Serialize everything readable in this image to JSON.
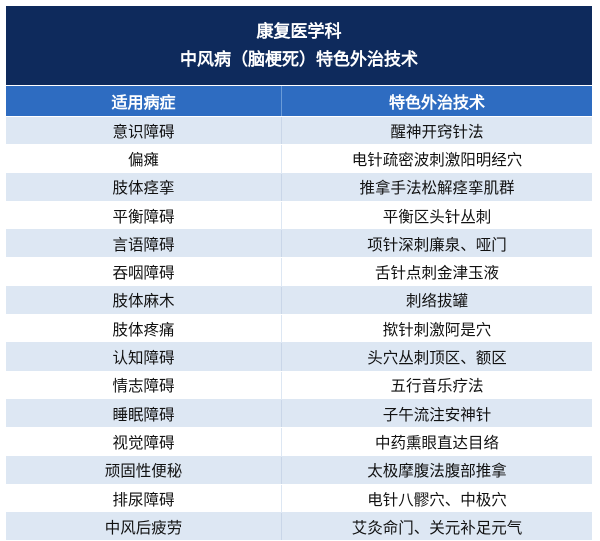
{
  "title": {
    "line1": "康复医学科",
    "line2": "中风病（脑梗死）特色外治技术"
  },
  "header": {
    "col1": "适用病症",
    "col2": "特色外治技术"
  },
  "rows": [
    {
      "condition": "意识障碍",
      "technique": "醒神开窍针法"
    },
    {
      "condition": "偏瘫",
      "technique": "电针疏密波刺激阳明经穴"
    },
    {
      "condition": "肢体痉挛",
      "technique": "推拿手法松解痉挛肌群"
    },
    {
      "condition": "平衡障碍",
      "technique": "平衡区头针丛刺"
    },
    {
      "condition": "言语障碍",
      "technique": "项针深刺廉泉、哑门"
    },
    {
      "condition": "吞咽障碍",
      "technique": "舌针点刺金津玉液"
    },
    {
      "condition": "肢体麻木",
      "technique": "刺络拔罐"
    },
    {
      "condition": "肢体疼痛",
      "technique": "揿针刺激阿是穴"
    },
    {
      "condition": "认知障碍",
      "technique": "头穴丛刺顶区、额区"
    },
    {
      "condition": "情志障碍",
      "technique": "五行音乐疗法"
    },
    {
      "condition": "睡眠障碍",
      "technique": "子午流注安神针"
    },
    {
      "condition": "视觉障碍",
      "technique": "中药熏眼直达目络"
    },
    {
      "condition": "顽固性便秘",
      "technique": "太极摩腹法腹部推拿"
    },
    {
      "condition": "排尿障碍",
      "technique": "电针八髎穴、中极穴"
    },
    {
      "condition": "中风后疲劳",
      "technique": "艾灸命门、关元补足元气"
    }
  ],
  "colors": {
    "title_bg": "#0e2a5c",
    "header_bg": "#2e6cc1",
    "stripe": "#dde7f3"
  }
}
